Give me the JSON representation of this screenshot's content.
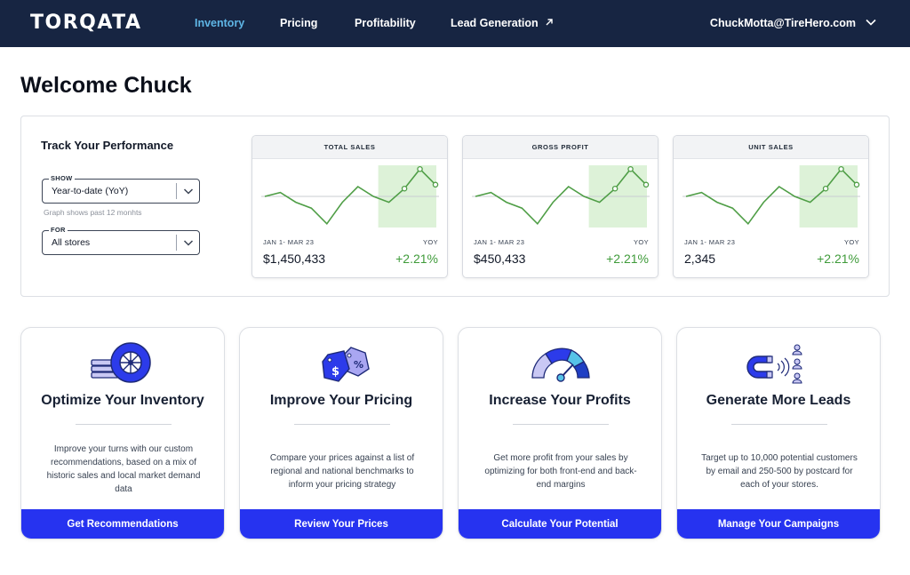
{
  "nav": {
    "logo": "TORQATA",
    "links": [
      {
        "label": "Inventory",
        "active": true
      },
      {
        "label": "Pricing"
      },
      {
        "label": "Profitability"
      },
      {
        "label": "Lead Generation",
        "external_icon": "arrow-up-right-icon"
      }
    ],
    "user_email": "ChuckMotta@TireHero.com",
    "user_menu_icon": "chevron-down-icon"
  },
  "welcome": "Welcome Chuck",
  "performance": {
    "title": "Track Your Performance",
    "show": {
      "label": "SHOW",
      "value": "Year-to-date (YoY)"
    },
    "hint": "Graph shows past 12 monhts",
    "for": {
      "label": "FOR",
      "value": "All stores"
    },
    "metrics": [
      {
        "title": "TOTAL SALES",
        "period": "JAN 1- MAR 23",
        "yoy_label": "YOY",
        "value": "$1,450,433",
        "change": "+2.21%"
      },
      {
        "title": "GROSS PROFIT",
        "period": "JAN 1- MAR 23",
        "yoy_label": "YOY",
        "value": "$450,433",
        "change": "+2.21%"
      },
      {
        "title": "UNIT SALES",
        "period": "JAN 1- MAR 23",
        "yoy_label": "YOY",
        "value": "2,345",
        "change": "+2.21%"
      }
    ],
    "sparkline_values": [
      0,
      2,
      -3,
      -6,
      -14,
      -3,
      5,
      0,
      -3,
      4,
      14,
      6
    ],
    "colors": {
      "line": "#4f9e46",
      "highlight": "#ddf2d8",
      "change": "#3f9b3a"
    }
  },
  "features": [
    {
      "title": "Optimize Your Inventory",
      "icon": "tire-icon",
      "desc": "Improve your turns with our custom recommendations, based on a mix of historic sales and local market demand data",
      "button": "Get Recommendations"
    },
    {
      "title": "Improve Your Pricing",
      "icon": "price-tags-icon",
      "desc": "Compare your prices against a list of regional and national benchmarks to inform your pricing strategy",
      "button": "Review Your Prices"
    },
    {
      "title": "Increase Your Profits",
      "icon": "gauge-icon",
      "desc": "Get more profit from your sales by optimizing for both front-end and back-end margins",
      "button": "Calculate Your Potential"
    },
    {
      "title": "Generate More Leads",
      "icon": "magnet-people-icon",
      "desc": "Target up to 10,000 potential customers by email and 250-500 by postcard for each of your stores.",
      "button": "Manage Your Campaigns"
    }
  ],
  "theme": {
    "nav_bg": "#172542",
    "active_link": "#5fb6e6",
    "button_bg": "#2633f0"
  }
}
